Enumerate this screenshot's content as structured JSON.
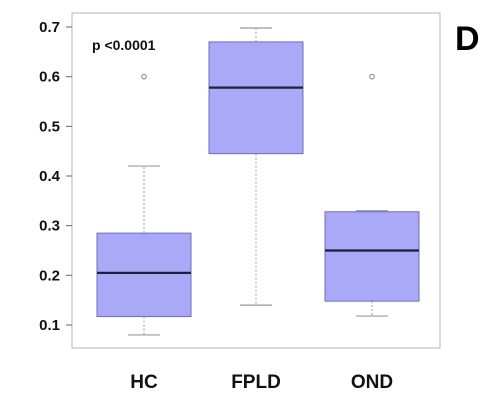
{
  "panel_label": "D",
  "annotation": "p <0.0001",
  "chart_data": {
    "type": "boxplot",
    "title": "",
    "xlabel": "",
    "ylabel": "",
    "ylim": [
      0.08,
      0.72
    ],
    "yticks": [
      0.1,
      0.2,
      0.3,
      0.4,
      0.5,
      0.6,
      0.7
    ],
    "categories": [
      "HC",
      "FPLD",
      "OND"
    ],
    "box_color": "#a9a9f7",
    "box_edge_color": "#6b6bd6",
    "boxes": [
      {
        "category": "HC",
        "whisker_low": 0.08,
        "q1": 0.117,
        "median": 0.205,
        "q3": 0.285,
        "whisker_high": 0.42,
        "outliers": [
          0.6
        ]
      },
      {
        "category": "FPLD",
        "whisker_low": 0.14,
        "q1": 0.445,
        "median": 0.578,
        "q3": 0.67,
        "whisker_high": 0.698,
        "outliers": []
      },
      {
        "category": "OND",
        "whisker_low": 0.118,
        "q1": 0.148,
        "median": 0.25,
        "q3": 0.328,
        "whisker_high": 0.33,
        "outliers": [
          0.6
        ]
      }
    ]
  }
}
